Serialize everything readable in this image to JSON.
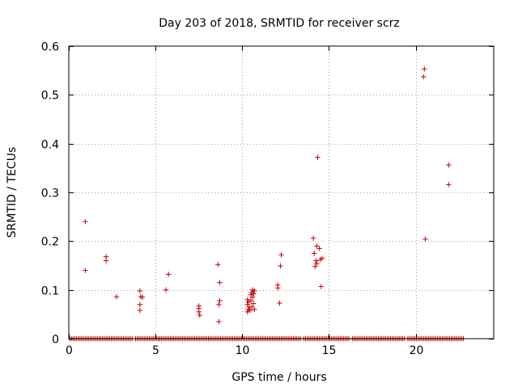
{
  "chart_data": {
    "type": "scatter",
    "title": "Day 203 of 2018, SRMTID for receiver scrz",
    "xlabel": "GPS time / hours",
    "ylabel": "SRMTID / TECUs",
    "xlim": [
      0,
      24.5
    ],
    "ylim": [
      0,
      0.6
    ],
    "xticks": [
      0,
      5,
      10,
      15,
      20
    ],
    "yticks": [
      0,
      0.1,
      0.2,
      0.3,
      0.4,
      0.5,
      0.6
    ],
    "xtick_labels": [
      "0",
      "5",
      "10",
      "15",
      "20"
    ],
    "ytick_labels": [
      "0",
      "0.1",
      "0.2",
      "0.3",
      "0.4",
      "0.5",
      "0.6"
    ],
    "grid": true,
    "series_color": "#cc0000",
    "marker": "plus",
    "baseline_range": [
      0.05,
      22.75
    ],
    "baseline_gaps": [
      [
        3.7,
        3.78
      ],
      [
        13.4,
        13.5
      ],
      [
        16.2,
        16.28
      ],
      [
        19.4,
        19.48
      ]
    ],
    "points": [
      {
        "x": 0.95,
        "y": 0.24
      },
      {
        "x": 0.95,
        "y": 0.14
      },
      {
        "x": 2.15,
        "y": 0.168
      },
      {
        "x": 2.15,
        "y": 0.16
      },
      {
        "x": 2.75,
        "y": 0.086
      },
      {
        "x": 4.1,
        "y": 0.098
      },
      {
        "x": 4.15,
        "y": 0.086
      },
      {
        "x": 4.25,
        "y": 0.085
      },
      {
        "x": 4.1,
        "y": 0.07
      },
      {
        "x": 4.1,
        "y": 0.058
      },
      {
        "x": 5.6,
        "y": 0.1
      },
      {
        "x": 5.75,
        "y": 0.132
      },
      {
        "x": 7.5,
        "y": 0.067
      },
      {
        "x": 7.5,
        "y": 0.062
      },
      {
        "x": 7.5,
        "y": 0.055
      },
      {
        "x": 7.55,
        "y": 0.048
      },
      {
        "x": 8.6,
        "y": 0.152
      },
      {
        "x": 8.7,
        "y": 0.115
      },
      {
        "x": 8.7,
        "y": 0.078
      },
      {
        "x": 8.65,
        "y": 0.07
      },
      {
        "x": 8.65,
        "y": 0.035
      },
      {
        "x": 10.3,
        "y": 0.08
      },
      {
        "x": 10.35,
        "y": 0.075
      },
      {
        "x": 10.3,
        "y": 0.07
      },
      {
        "x": 10.4,
        "y": 0.065
      },
      {
        "x": 10.35,
        "y": 0.06
      },
      {
        "x": 10.3,
        "y": 0.055
      },
      {
        "x": 10.5,
        "y": 0.09
      },
      {
        "x": 10.55,
        "y": 0.095
      },
      {
        "x": 10.6,
        "y": 0.1
      },
      {
        "x": 10.7,
        "y": 0.098
      },
      {
        "x": 10.65,
        "y": 0.092
      },
      {
        "x": 10.6,
        "y": 0.085
      },
      {
        "x": 10.5,
        "y": 0.078
      },
      {
        "x": 10.65,
        "y": 0.072
      },
      {
        "x": 10.55,
        "y": 0.065
      },
      {
        "x": 10.7,
        "y": 0.06
      },
      {
        "x": 10.45,
        "y": 0.058
      },
      {
        "x": 12.05,
        "y": 0.11
      },
      {
        "x": 12.05,
        "y": 0.104
      },
      {
        "x": 12.15,
        "y": 0.073
      },
      {
        "x": 12.2,
        "y": 0.149
      },
      {
        "x": 12.25,
        "y": 0.172
      },
      {
        "x": 14.1,
        "y": 0.206
      },
      {
        "x": 14.15,
        "y": 0.175
      },
      {
        "x": 14.3,
        "y": 0.19
      },
      {
        "x": 14.45,
        "y": 0.185
      },
      {
        "x": 14.35,
        "y": 0.372
      },
      {
        "x": 14.25,
        "y": 0.16
      },
      {
        "x": 14.3,
        "y": 0.154
      },
      {
        "x": 14.2,
        "y": 0.148
      },
      {
        "x": 14.6,
        "y": 0.165
      },
      {
        "x": 14.5,
        "y": 0.162
      },
      {
        "x": 14.55,
        "y": 0.107
      },
      {
        "x": 20.5,
        "y": 0.553
      },
      {
        "x": 20.45,
        "y": 0.537
      },
      {
        "x": 20.55,
        "y": 0.204
      },
      {
        "x": 21.9,
        "y": 0.356
      },
      {
        "x": 21.9,
        "y": 0.316
      }
    ]
  }
}
